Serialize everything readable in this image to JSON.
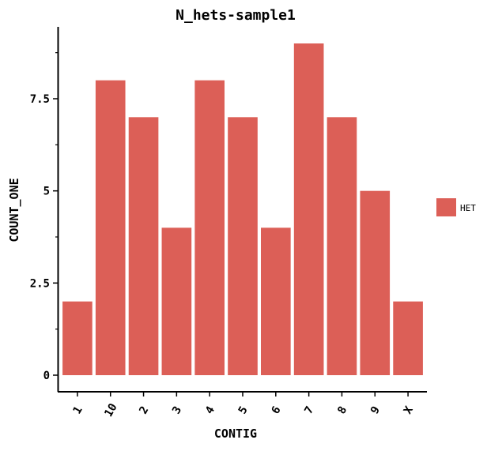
{
  "chart_data": {
    "type": "bar",
    "title": "N_hets-sample1",
    "xlabel": "CONTIG",
    "ylabel": "COUNT_ONE",
    "categories": [
      "1",
      "10",
      "2",
      "3",
      "4",
      "5",
      "6",
      "7",
      "8",
      "9",
      "X"
    ],
    "series": [
      {
        "name": "HET",
        "values": [
          2,
          8,
          7,
          4,
          8,
          7,
          4,
          9,
          7,
          5,
          2
        ],
        "color": "#dc5f57"
      }
    ],
    "ylim": [
      -0.45,
      9.45
    ],
    "y_major_ticks": [
      0,
      2.5,
      5,
      7.5
    ],
    "y_major_tick_labels": [
      "0",
      "2.5",
      "5",
      "7.5"
    ],
    "y_minor_ticks": [
      1.25,
      3.75,
      6.25,
      8.75
    ],
    "grid": false,
    "legend": {
      "position": "right",
      "entries": [
        "HET"
      ]
    }
  }
}
